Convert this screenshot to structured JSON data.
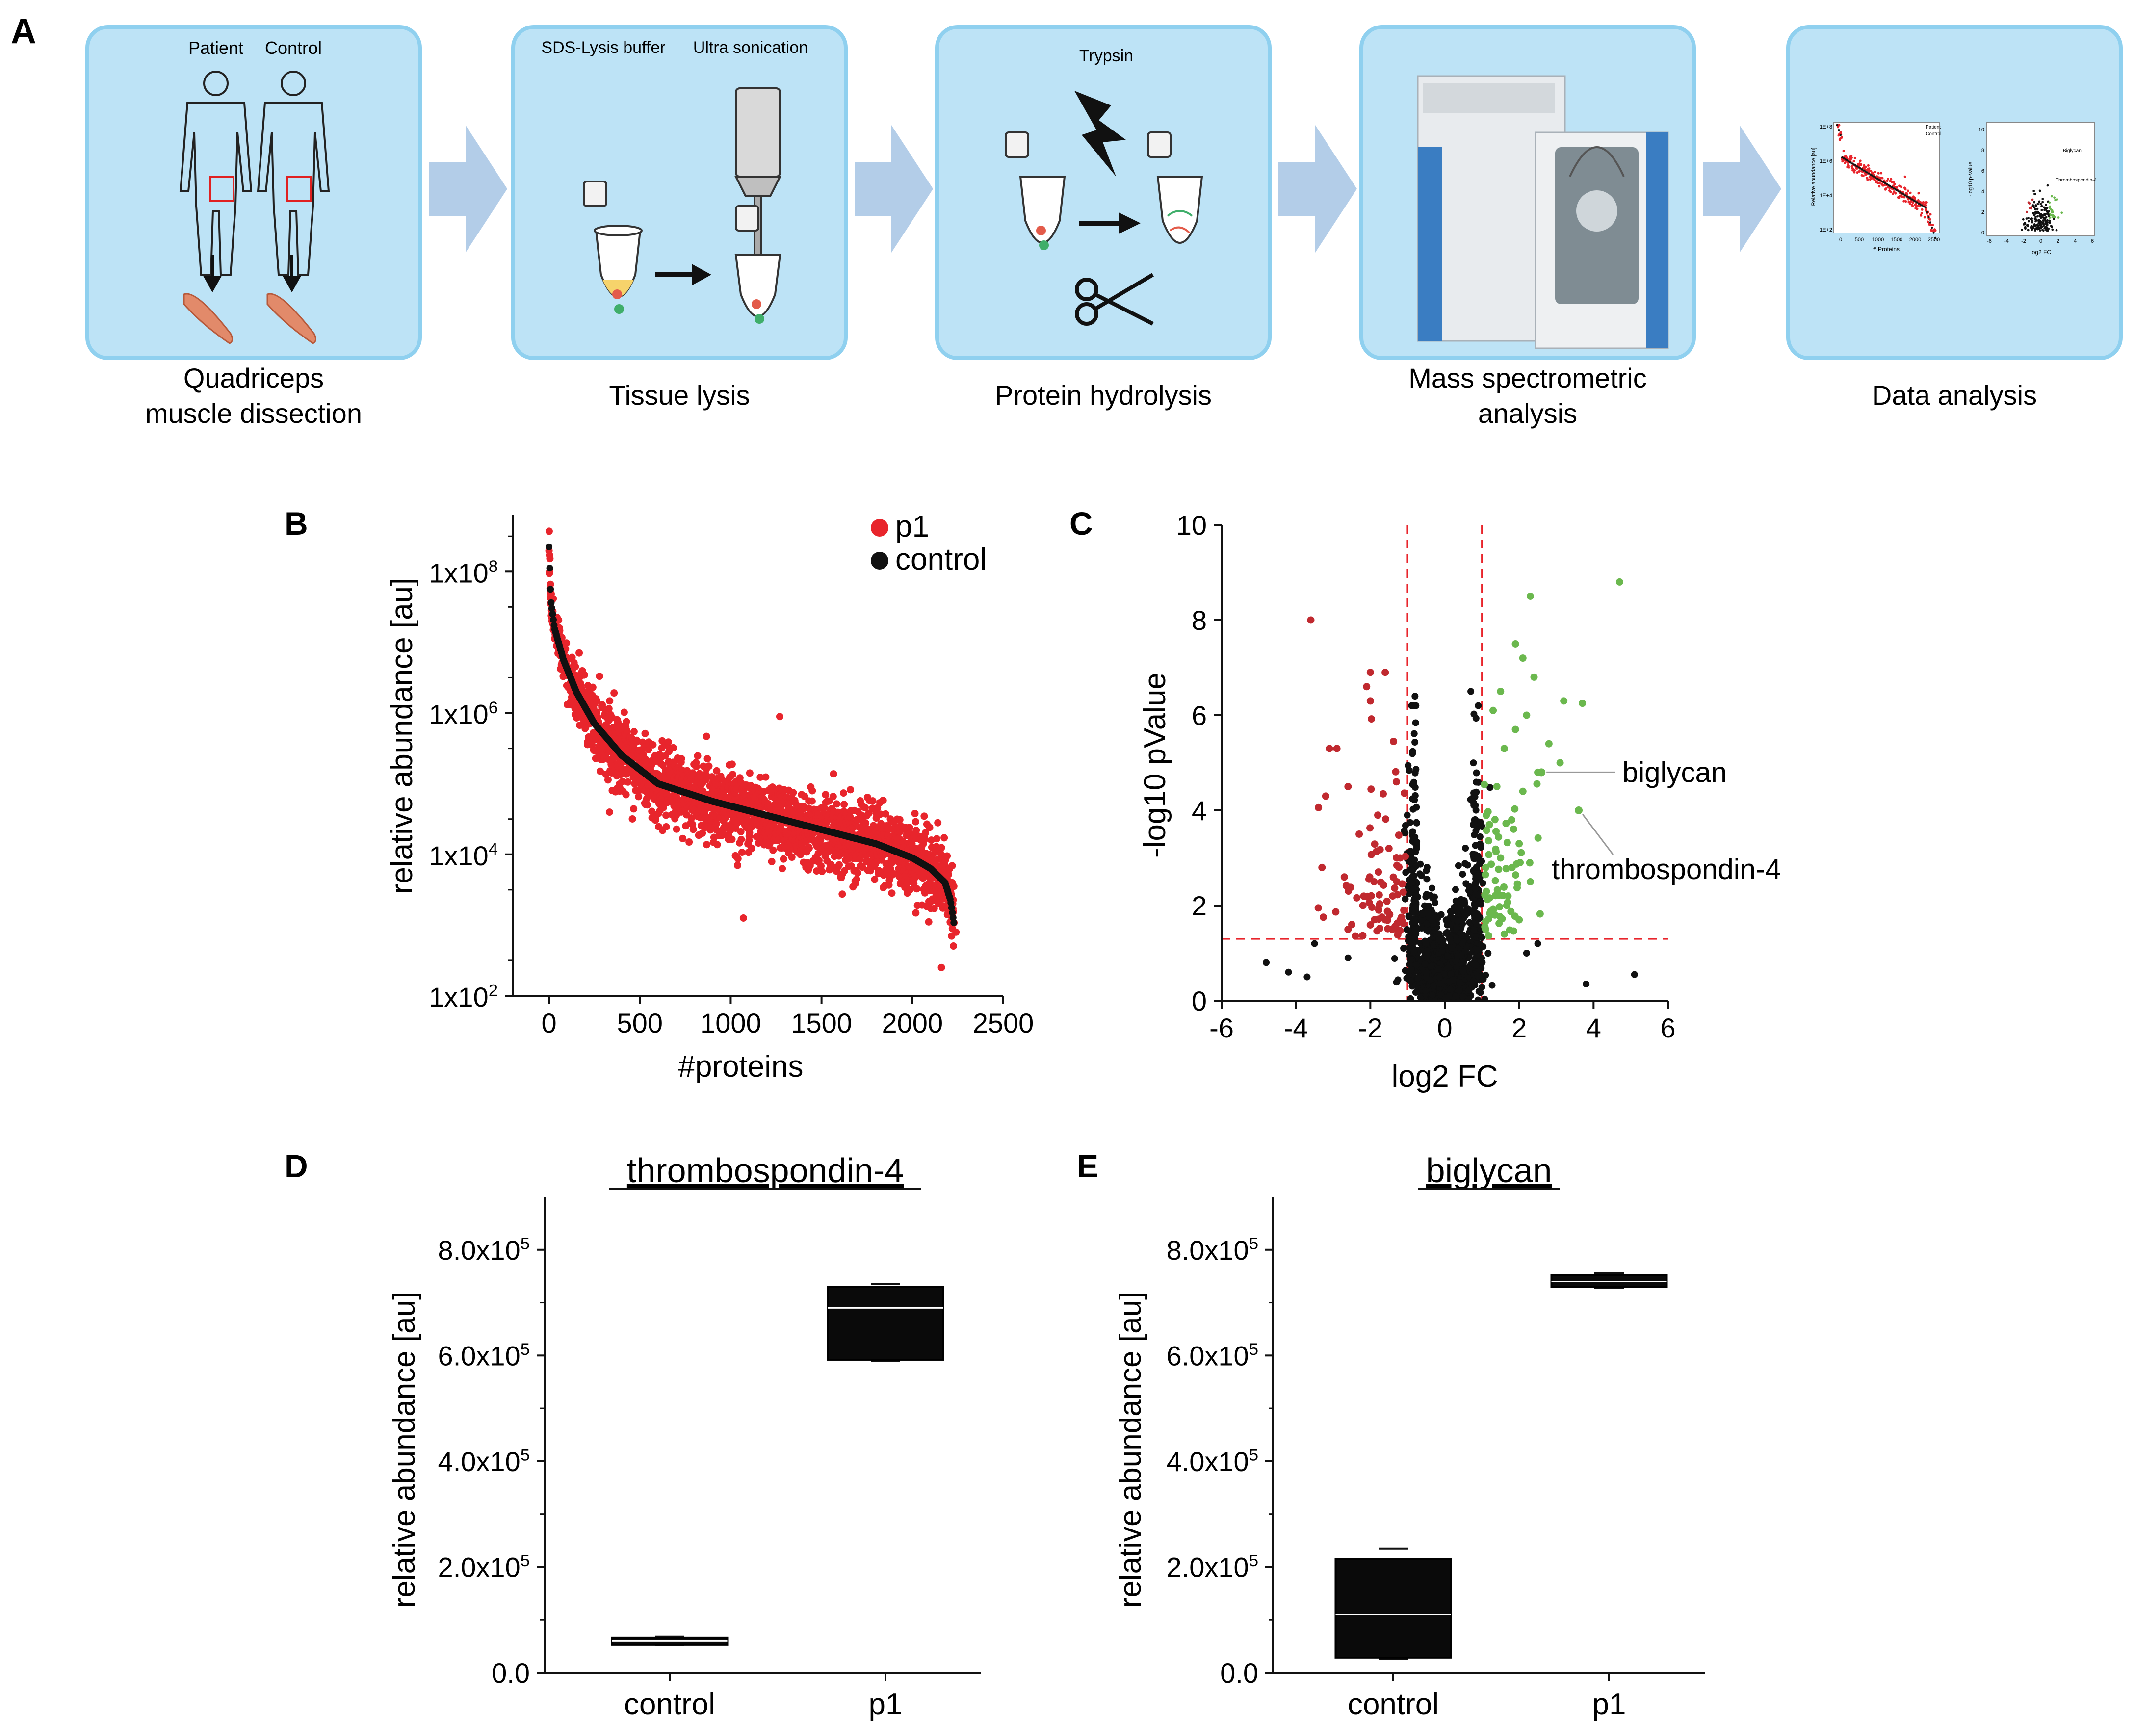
{
  "panel_letters": {
    "a": "A",
    "b": "B",
    "c": "C",
    "d": "D",
    "e": "E"
  },
  "colors": {
    "box_fill": "#bde3f6",
    "box_border": "#8fd0ef",
    "arrow": "#b3cde8",
    "red": "#e8252c",
    "dark_red": "#c0292f",
    "green": "#6bb84e",
    "black": "#111111",
    "dashed": "#e8252c"
  },
  "workflow": {
    "steps": [
      {
        "caption_lines": [
          "Quadriceps",
          "muscle dissection"
        ],
        "inner_labels": [
          "Patient",
          "Control"
        ],
        "icon": "human-silhouette-icon"
      },
      {
        "caption_lines": [
          "Tissue lysis"
        ],
        "inner_labels": [
          "SDS-Lysis buffer",
          "Ultra sonication"
        ],
        "icon": "tube-icon"
      },
      {
        "caption_lines": [
          "Protein hydrolysis"
        ],
        "inner_labels": [
          "Trypsin"
        ],
        "icon": "scissors-icon"
      },
      {
        "caption_lines": [
          "Mass spectrometric",
          "analysis"
        ],
        "inner_labels": [],
        "icon": "mass-spectrometer-icon"
      },
      {
        "caption_lines": [
          "Data analysis"
        ],
        "inner_labels": [],
        "icon": "mini-plots-icon"
      }
    ],
    "mini_plot": {
      "y_ticks": [
        "1E+8",
        "1E+6",
        "1E+4",
        "1E+2"
      ],
      "x_ticks": [
        "0",
        "500",
        "1000",
        "1500",
        "2000",
        "2500"
      ],
      "xlabel": "# Proteins",
      "ylabel": "Relative abundance [au]",
      "legend": [
        "Patient",
        "Control"
      ],
      "volcano_xlabel": "log2 FC",
      "volcano_ylabel": "-log10 p-Value",
      "volcano_x_ticks": [
        "-6",
        "-4",
        "-2",
        "0",
        "2",
        "4",
        "6"
      ],
      "volcano_y_ticks": [
        "0",
        "2",
        "4",
        "6",
        "8",
        "10"
      ],
      "volcano_labels": [
        "Biglycan",
        "Thrombospondin-4"
      ]
    }
  },
  "chart_data": [
    {
      "id": "B",
      "type": "scatter",
      "title": "",
      "xlabel": "#proteins",
      "ylabel": "relative abundance [au]",
      "xlim": [
        -200,
        2500
      ],
      "ylim_log10": [
        2,
        8.8
      ],
      "x_ticks": [
        0,
        500,
        1000,
        1500,
        2000,
        2500
      ],
      "x_tick_labels": [
        "0",
        "500",
        "1000",
        "1500",
        "2000",
        "2500"
      ],
      "y_ticks_log10": [
        2,
        4,
        6,
        8
      ],
      "y_tick_labels": [
        {
          "base": "1x10",
          "exp": "2"
        },
        {
          "base": "1x10",
          "exp": "4"
        },
        {
          "base": "1x10",
          "exp": "6"
        },
        {
          "base": "1x10",
          "exp": "8"
        }
      ],
      "legend": [
        {
          "name": "p1",
          "color": "#e8252c"
        },
        {
          "name": "control",
          "color": "#111111"
        }
      ],
      "n_proteins": 2230,
      "control_curve_log10": [
        [
          0,
          8.35
        ],
        [
          10,
          7.6
        ],
        [
          30,
          7.2
        ],
        [
          80,
          6.75
        ],
        [
          150,
          6.3
        ],
        [
          250,
          5.85
        ],
        [
          400,
          5.4
        ],
        [
          600,
          5.0
        ],
        [
          900,
          4.75
        ],
        [
          1200,
          4.55
        ],
        [
          1500,
          4.35
        ],
        [
          1800,
          4.15
        ],
        [
          2000,
          3.95
        ],
        [
          2100,
          3.8
        ],
        [
          2180,
          3.6
        ],
        [
          2210,
          3.35
        ],
        [
          2230,
          3.0
        ]
      ],
      "p1_outliers_log10": [
        [
          1070,
          3.1
        ],
        [
          2160,
          2.4
        ],
        [
          1270,
          5.95
        ],
        [
          2240,
          2.9
        ]
      ]
    },
    {
      "id": "C",
      "type": "scatter",
      "subtype": "volcano",
      "xlabel": "log2 FC",
      "ylabel": "-log10 pValue",
      "xlim": [
        -6,
        6
      ],
      "ylim": [
        0,
        10
      ],
      "x_ticks": [
        -6,
        -4,
        -2,
        0,
        2,
        4,
        6
      ],
      "y_ticks": [
        0,
        2,
        4,
        6,
        8,
        10
      ],
      "x_tick_labels": [
        "-6",
        "-4",
        "-2",
        "0",
        "2",
        "4",
        "6"
      ],
      "y_tick_labels": [
        "0",
        "2",
        "4",
        "6",
        "8",
        "10"
      ],
      "fc_threshold": [
        -1,
        1
      ],
      "p_threshold": 1.3,
      "red_points": [
        [
          -3.6,
          8.0
        ],
        [
          -2.0,
          6.9
        ],
        [
          -1.6,
          6.9
        ],
        [
          -2.1,
          6.6
        ],
        [
          -2.0,
          6.3
        ],
        [
          -3.1,
          5.3
        ],
        [
          -2.9,
          5.3
        ],
        [
          -2.6,
          4.5
        ],
        [
          -3.2,
          4.3
        ],
        [
          -1.3,
          4.6
        ],
        [
          -1.8,
          3.9
        ],
        [
          -2.3,
          3.5
        ],
        [
          -1.5,
          3.2
        ],
        [
          -1.2,
          3.0
        ],
        [
          -3.3,
          2.8
        ],
        [
          -2.7,
          2.6
        ],
        [
          -1.9,
          2.5
        ],
        [
          -1.4,
          2.2
        ],
        [
          -2.2,
          2.0
        ],
        [
          -3.4,
          1.95
        ],
        [
          -1.1,
          1.9
        ],
        [
          -1.6,
          1.7
        ],
        [
          -2.5,
          1.6
        ],
        [
          -1.3,
          1.5
        ]
      ],
      "green_points": [
        [
          4.7,
          8.8
        ],
        [
          2.3,
          8.5
        ],
        [
          1.9,
          7.5
        ],
        [
          2.1,
          7.2
        ],
        [
          2.4,
          6.8
        ],
        [
          3.2,
          6.3
        ],
        [
          3.7,
          6.25
        ],
        [
          1.5,
          6.5
        ],
        [
          2.2,
          6.0
        ],
        [
          1.3,
          6.1
        ],
        [
          1.9,
          5.7
        ],
        [
          2.8,
          5.4
        ],
        [
          1.6,
          5.3
        ],
        [
          3.1,
          5.0
        ],
        [
          2.5,
          4.8
        ],
        [
          2.6,
          4.8
        ],
        [
          1.4,
          4.5
        ],
        [
          2.1,
          4.4
        ],
        [
          3.6,
          4.0
        ],
        [
          1.8,
          3.8
        ],
        [
          1.2,
          3.7
        ],
        [
          2.0,
          3.3
        ],
        [
          1.5,
          3.0
        ],
        [
          1.1,
          2.8
        ],
        [
          2.3,
          2.5
        ],
        [
          1.7,
          2.2
        ],
        [
          1.3,
          1.9
        ],
        [
          2.0,
          1.7
        ],
        [
          1.1,
          1.5
        ],
        [
          1.6,
          1.4
        ]
      ],
      "black_outliers": [
        [
          -4.8,
          0.8
        ],
        [
          -4.2,
          0.6
        ],
        [
          -3.5,
          1.2
        ],
        [
          -3.7,
          0.5
        ],
        [
          -0.8,
          6.4
        ],
        [
          0.7,
          6.5
        ],
        [
          0.9,
          6.2
        ],
        [
          2.5,
          1.2
        ],
        [
          3.8,
          0.35
        ],
        [
          5.1,
          0.55
        ],
        [
          -2.6,
          0.9
        ],
        [
          2.2,
          1.0
        ]
      ],
      "annotations": [
        {
          "label": "biglycan",
          "x": 2.6,
          "y": 4.8
        },
        {
          "label": "thrombospondin-4",
          "x": 3.6,
          "y": 4.0
        }
      ]
    },
    {
      "id": "D",
      "type": "box",
      "title": "thrombospondin-4",
      "ylabel": "relative abundance [au]",
      "categories": [
        "control",
        "p1"
      ],
      "ylim": [
        0,
        900000
      ],
      "y_ticks": [
        0,
        200000,
        400000,
        600000,
        800000
      ],
      "y_tick_labels": [
        {
          "base": "0.0",
          "exp": ""
        },
        {
          "base": "2.0x10",
          "exp": "5"
        },
        {
          "base": "4.0x10",
          "exp": "5"
        },
        {
          "base": "6.0x10",
          "exp": "5"
        },
        {
          "base": "8.0x10",
          "exp": "5"
        }
      ],
      "boxes": [
        {
          "name": "control",
          "min": 53000,
          "q1": 55000,
          "median": 60000,
          "q3": 66000,
          "max": 68000
        },
        {
          "name": "p1",
          "min": 590000,
          "q1": 592000,
          "median": 690000,
          "q3": 730000,
          "max": 735000
        }
      ]
    },
    {
      "id": "E",
      "type": "box",
      "title": "biglycan",
      "ylabel": "relative abundance [au]",
      "categories": [
        "control",
        "p1"
      ],
      "ylim": [
        0,
        900000
      ],
      "y_ticks": [
        0,
        200000,
        400000,
        600000,
        800000
      ],
      "y_tick_labels": [
        {
          "base": "0.0",
          "exp": ""
        },
        {
          "base": "2.0x10",
          "exp": "5"
        },
        {
          "base": "4.0x10",
          "exp": "5"
        },
        {
          "base": "6.0x10",
          "exp": "5"
        },
        {
          "base": "8.0x10",
          "exp": "5"
        }
      ],
      "boxes": [
        {
          "name": "control",
          "min": 25000,
          "q1": 28000,
          "median": 110000,
          "q3": 215000,
          "max": 235000
        },
        {
          "name": "p1",
          "min": 728000,
          "q1": 730000,
          "median": 740000,
          "q3": 752000,
          "max": 756000
        }
      ]
    }
  ]
}
